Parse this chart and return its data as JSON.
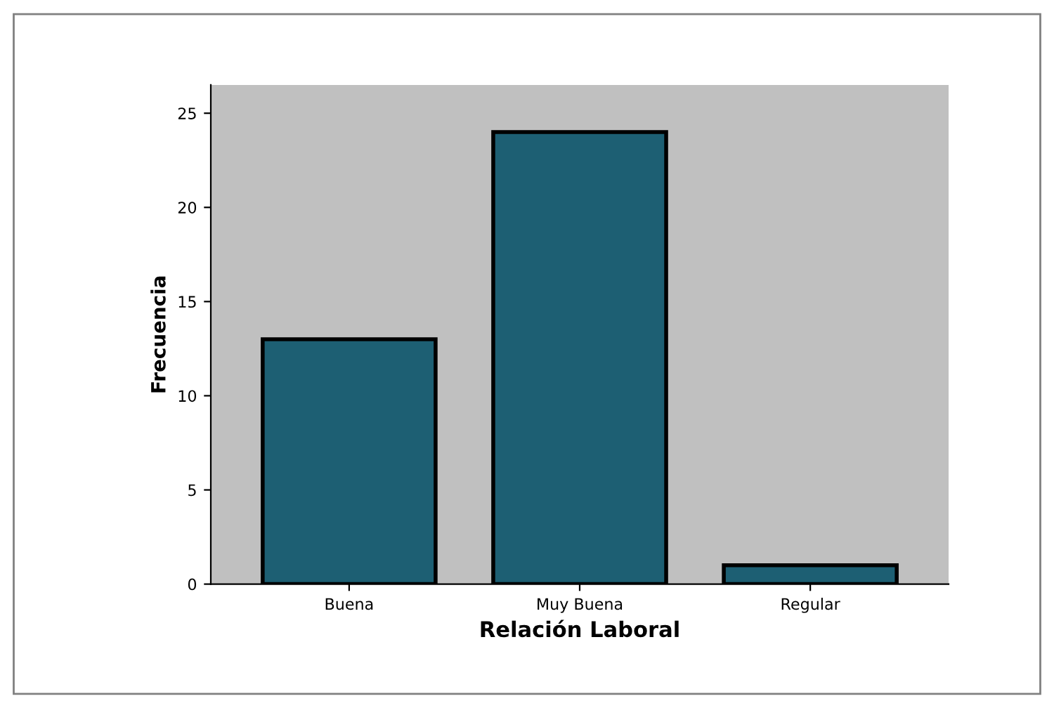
{
  "chart_data": {
    "type": "bar",
    "xlabel": "Relación Laboral",
    "ylabel": "Frecuencia",
    "categories": [
      "Buena",
      "Muy Buena",
      "Regular"
    ],
    "values": [
      13,
      24,
      1
    ],
    "color": "#1d5f73",
    "ylim": [
      0,
      26.5
    ],
    "yticks": [
      0,
      5,
      10,
      15,
      20,
      25
    ],
    "grid": false,
    "legend": false
  }
}
